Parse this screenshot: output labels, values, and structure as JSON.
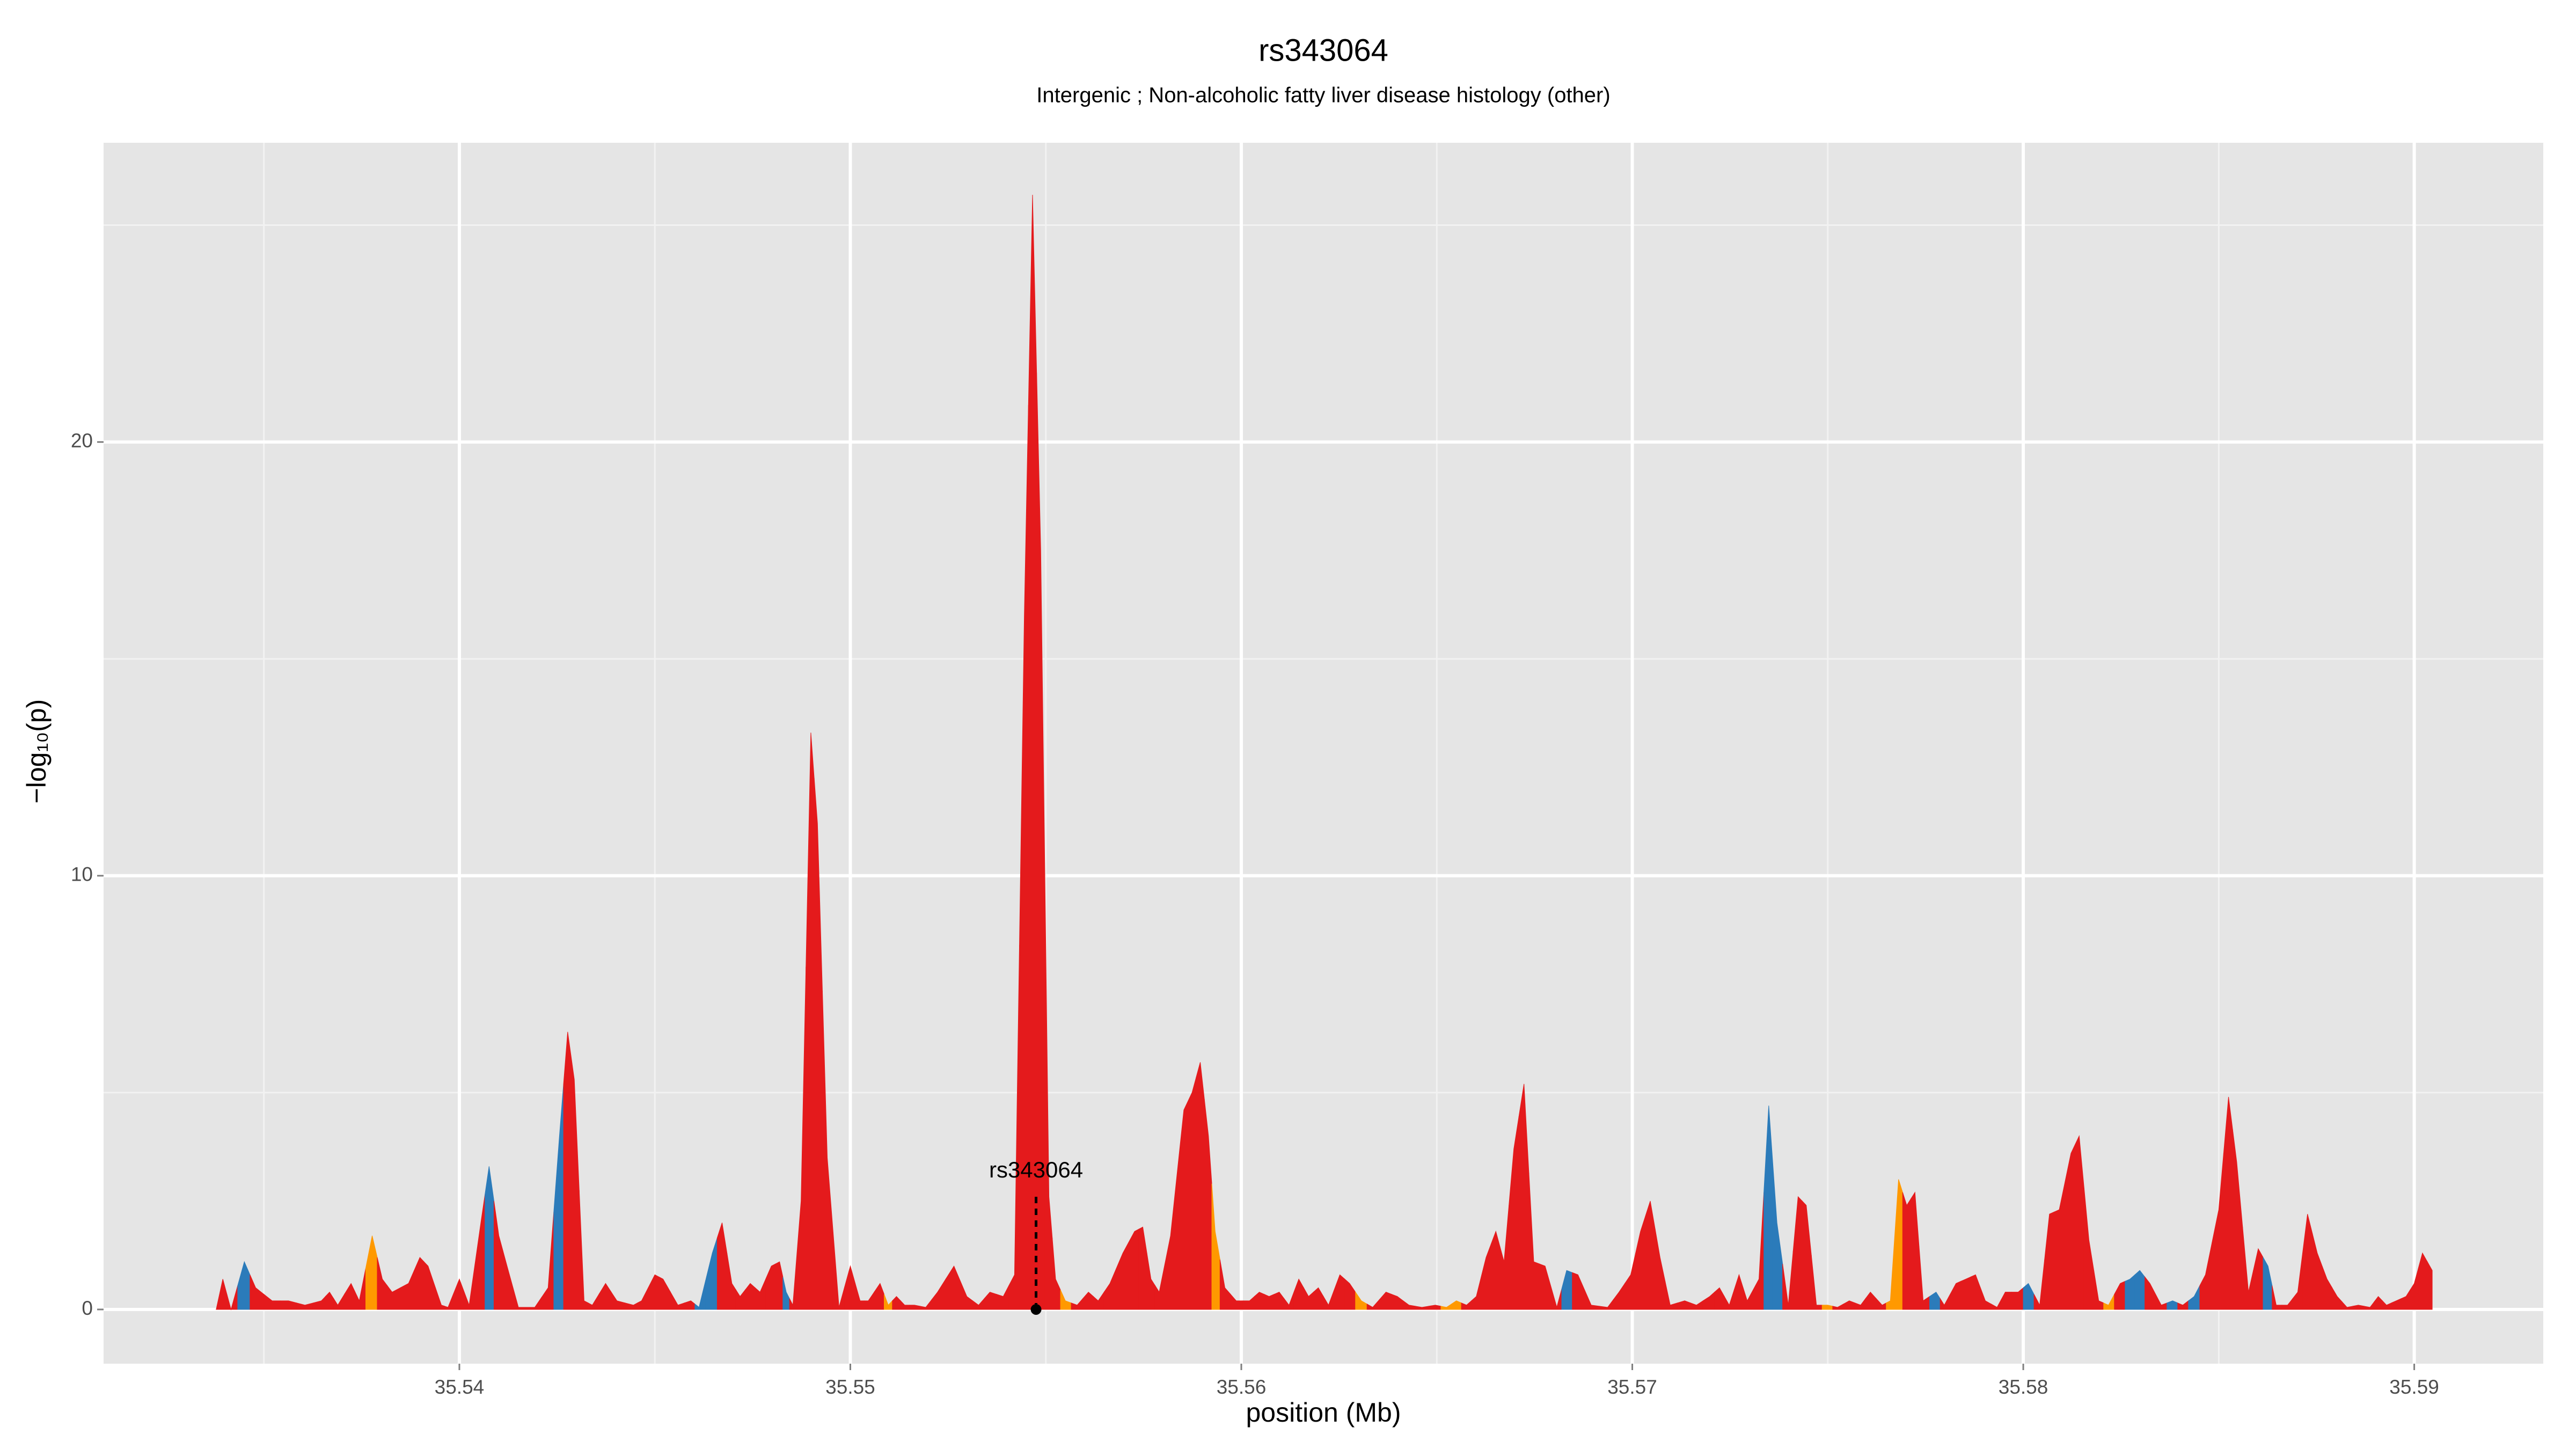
{
  "chart_data": {
    "type": "area",
    "title": "rs343064",
    "subtitle": "Intergenic ; Non-alcoholic fatty liver disease histology (other)",
    "x_label": "position (Mb)",
    "y_label": "−log₁₀(p)",
    "xlim": [
      35.5309,
      35.5933
    ],
    "ylim": [
      -1.25,
      26.9
    ],
    "xticks": [
      35.54,
      35.55,
      35.56,
      35.57,
      35.58,
      35.59
    ],
    "yticks": [
      0,
      10,
      20
    ],
    "minor_xticks": [
      35.535,
      35.545,
      35.555,
      35.565,
      35.575,
      35.585
    ],
    "minor_yticks": [
      5,
      15,
      25
    ],
    "grid": true,
    "annotation": {
      "text": "rs343064",
      "x": 35.55475,
      "y": 0
    },
    "x": [
      35.53378,
      35.53395,
      35.53416,
      35.5345,
      35.53479,
      35.53521,
      35.53563,
      35.53605,
      35.53647,
      35.53668,
      35.53689,
      35.53723,
      35.53744,
      35.53777,
      35.53803,
      35.53828,
      35.5387,
      35.53899,
      35.5392,
      35.53954,
      35.53971,
      35.54,
      35.54025,
      35.54055,
      35.54076,
      35.54101,
      35.54122,
      35.54151,
      35.54193,
      35.54227,
      35.54256,
      35.54277,
      35.54294,
      35.54319,
      35.5434,
      35.54374,
      35.54403,
      35.54445,
      35.54466,
      35.545,
      35.54521,
      35.54559,
      35.54592,
      35.54613,
      35.54647,
      35.54672,
      35.54697,
      35.54718,
      35.54744,
      35.54769,
      35.54798,
      35.54819,
      35.54836,
      35.54853,
      35.54874,
      35.54899,
      35.54916,
      35.54941,
      35.54971,
      35.55,
      35.55025,
      35.55046,
      35.55076,
      35.55097,
      35.55118,
      35.55139,
      35.55164,
      35.55193,
      35.55223,
      35.55265,
      35.55298,
      35.55328,
      35.55357,
      35.55391,
      35.5542,
      35.55445,
      35.55466,
      35.55487,
      35.55508,
      35.55525,
      35.5555,
      35.5558,
      35.55609,
      35.55634,
      35.55664,
      35.55697,
      35.55727,
      35.55748,
      35.55769,
      35.5579,
      35.55819,
      35.55853,
      35.55874,
      35.55895,
      35.55916,
      35.55933,
      35.55958,
      35.55987,
      35.56021,
      35.56046,
      35.56071,
      35.56097,
      35.56122,
      35.56147,
      35.56172,
      35.56197,
      35.56223,
      35.56252,
      35.56277,
      35.56307,
      35.56336,
      35.5637,
      35.56399,
      35.56429,
      35.56462,
      35.56496,
      35.56525,
      35.5655,
      35.56576,
      35.56601,
      35.56626,
      35.56651,
      35.56672,
      35.56697,
      35.56723,
      35.56748,
      35.56777,
      35.56807,
      35.56832,
      35.56861,
      35.56895,
      35.56937,
      35.56966,
      35.56996,
      35.57021,
      35.57046,
      35.57071,
      35.57097,
      35.57134,
      35.57164,
      35.57198,
      35.57223,
      35.57248,
      35.57273,
      35.57294,
      35.57324,
      35.57349,
      35.5737,
      35.57399,
      35.57424,
      35.57445,
      35.57471,
      35.575,
      35.57525,
      35.57555,
      35.57584,
      35.57609,
      35.57639,
      35.5766,
      35.57681,
      35.57702,
      35.57723,
      35.57744,
      35.57777,
      35.57798,
      35.57828,
      35.57853,
      35.57878,
      35.57903,
      35.57933,
      35.57954,
      35.57987,
      35.58013,
      35.58042,
      35.58067,
      35.58092,
      35.58122,
      35.58143,
      35.58168,
      35.58193,
      35.58218,
      35.58248,
      35.58273,
      35.58298,
      35.58324,
      35.58353,
      35.58382,
      35.58408,
      35.58437,
      35.58466,
      35.585,
      35.58525,
      35.58546,
      35.58576,
      35.58601,
      35.58626,
      35.58647,
      35.58676,
      35.58702,
      35.58727,
      35.58752,
      35.58777,
      35.58803,
      35.58828,
      35.58857,
      35.58887,
      35.58908,
      35.58929,
      35.58954,
      35.58979,
      35.59,
      35.59021,
      35.59046
    ],
    "values": [
      0,
      0.7,
      0,
      1.1,
      0.5,
      0.2,
      0.2,
      0.1,
      0.2,
      0.4,
      0.1,
      0.6,
      0.2,
      1.7,
      0.7,
      0.4,
      0.6,
      1.2,
      1.0,
      0.1,
      0.05,
      0.7,
      0.1,
      2.0,
      3.3,
      1.7,
      1.0,
      0.05,
      0.05,
      0.5,
      4.0,
      6.4,
      5.3,
      0.2,
      0.1,
      0.6,
      0.2,
      0.1,
      0.2,
      0.8,
      0.7,
      0.1,
      0.2,
      0.05,
      1.3,
      2.0,
      0.6,
      0.3,
      0.6,
      0.4,
      1.0,
      1.1,
      0.4,
      0.1,
      2.5,
      13.3,
      11.2,
      3.5,
      0.05,
      1.0,
      0.2,
      0.2,
      0.6,
      0.1,
      0.3,
      0.1,
      0.1,
      0.05,
      0.4,
      1.0,
      0.3,
      0.1,
      0.4,
      0.3,
      0.8,
      16.0,
      25.7,
      17.5,
      2.6,
      0.7,
      0.2,
      0.1,
      0.4,
      0.2,
      0.6,
      1.3,
      1.8,
      1.9,
      0.7,
      0.4,
      1.7,
      4.6,
      5.0,
      5.7,
      4.0,
      1.8,
      0.5,
      0.2,
      0.2,
      0.4,
      0.3,
      0.4,
      0.1,
      0.7,
      0.3,
      0.5,
      0.1,
      0.8,
      0.6,
      0.2,
      0.05,
      0.4,
      0.3,
      0.1,
      0.05,
      0.1,
      0.05,
      0.2,
      0.1,
      0.3,
      1.2,
      1.8,
      1.1,
      3.7,
      5.2,
      1.1,
      1.0,
      0.05,
      0.9,
      0.8,
      0.1,
      0.05,
      0.4,
      0.8,
      1.8,
      2.5,
      1.2,
      0.1,
      0.2,
      0.1,
      0.3,
      0.5,
      0.1,
      0.8,
      0.2,
      0.7,
      4.7,
      2.0,
      0.1,
      2.6,
      2.4,
      0.1,
      0.1,
      0.05,
      0.2,
      0.1,
      0.4,
      0.1,
      0.2,
      3.0,
      2.4,
      2.7,
      0.2,
      0.4,
      0.1,
      0.6,
      0.7,
      0.8,
      0.2,
      0.05,
      0.4,
      0.4,
      0.6,
      0.1,
      2.2,
      2.3,
      3.6,
      4.0,
      1.6,
      0.2,
      0.1,
      0.6,
      0.7,
      0.9,
      0.6,
      0.1,
      0.2,
      0.1,
      0.3,
      0.8,
      2.3,
      4.9,
      3.4,
      0.4,
      1.4,
      1.0,
      0.1,
      0.1,
      0.4,
      2.2,
      1.3,
      0.7,
      0.3,
      0.05,
      0.1,
      0.05,
      0.3,
      0.1,
      0.2,
      0.3,
      0.6,
      1.3,
      0.9
    ],
    "colors": [
      "#e41a1c",
      "#e41a1c",
      "#e41a1c",
      "#2b7bba",
      "#e41a1c",
      "#e41a1c",
      "#e41a1c",
      "#e41a1c",
      "#e41a1c",
      "#e41a1c",
      "#e41a1c",
      "#e41a1c",
      "#e41a1c",
      "#ff9900",
      "#e41a1c",
      "#e41a1c",
      "#e41a1c",
      "#e41a1c",
      "#e41a1c",
      "#e41a1c",
      "#e41a1c",
      "#e41a1c",
      "#e41a1c",
      "#e41a1c",
      "#2b7bba",
      "#e41a1c",
      "#e41a1c",
      "#e41a1c",
      "#e41a1c",
      "#e41a1c",
      "#2b7bba",
      "#e41a1c",
      "#e41a1c",
      "#e41a1c",
      "#e41a1c",
      "#e41a1c",
      "#e41a1c",
      "#e41a1c",
      "#e41a1c",
      "#e41a1c",
      "#e41a1c",
      "#e41a1c",
      "#e41a1c",
      "#2b7bba",
      "#2b7bba",
      "#e41a1c",
      "#e41a1c",
      "#e41a1c",
      "#e41a1c",
      "#e41a1c",
      "#e41a1c",
      "#e41a1c",
      "#2b7bba",
      "#e41a1c",
      "#e41a1c",
      "#e41a1c",
      "#e41a1c",
      "#e41a1c",
      "#e41a1c",
      "#e41a1c",
      "#e41a1c",
      "#e41a1c",
      "#e41a1c",
      "#ff9900",
      "#e41a1c",
      "#e41a1c",
      "#e41a1c",
      "#e41a1c",
      "#e41a1c",
      "#e41a1c",
      "#e41a1c",
      "#e41a1c",
      "#e41a1c",
      "#e41a1c",
      "#e41a1c",
      "#e41a1c",
      "#e41a1c",
      "#e41a1c",
      "#e41a1c",
      "#e41a1c",
      "#ff9900",
      "#e41a1c",
      "#e41a1c",
      "#e41a1c",
      "#e41a1c",
      "#e41a1c",
      "#e41a1c",
      "#e41a1c",
      "#e41a1c",
      "#e41a1c",
      "#e41a1c",
      "#e41a1c",
      "#e41a1c",
      "#e41a1c",
      "#e41a1c",
      "#ff9900",
      "#e41a1c",
      "#e41a1c",
      "#e41a1c",
      "#e41a1c",
      "#e41a1c",
      "#e41a1c",
      "#e41a1c",
      "#e41a1c",
      "#e41a1c",
      "#e41a1c",
      "#e41a1c",
      "#e41a1c",
      "#e41a1c",
      "#ff9900",
      "#e41a1c",
      "#e41a1c",
      "#e41a1c",
      "#e41a1c",
      "#e41a1c",
      "#e41a1c",
      "#ff9900",
      "#ff9900",
      "#e41a1c",
      "#e41a1c",
      "#e41a1c",
      "#e41a1c",
      "#e41a1c",
      "#e41a1c",
      "#e41a1c",
      "#e41a1c",
      "#e41a1c",
      "#e41a1c",
      "#2b7bba",
      "#e41a1c",
      "#e41a1c",
      "#e41a1c",
      "#e41a1c",
      "#e41a1c",
      "#e41a1c",
      "#e41a1c",
      "#e41a1c",
      "#e41a1c",
      "#e41a1c",
      "#e41a1c",
      "#e41a1c",
      "#e41a1c",
      "#e41a1c",
      "#e41a1c",
      "#e41a1c",
      "#e41a1c",
      "#2b7bba",
      "#2b7bba",
      "#e41a1c",
      "#e41a1c",
      "#e41a1c",
      "#e41a1c",
      "#ff9900",
      "#e41a1c",
      "#e41a1c",
      "#e41a1c",
      "#e41a1c",
      "#e41a1c",
      "#ff9900",
      "#ff9900",
      "#e41a1c",
      "#e41a1c",
      "#e41a1c",
      "#2b7bba",
      "#e41a1c",
      "#e41a1c",
      "#e41a1c",
      "#e41a1c",
      "#e41a1c",
      "#e41a1c",
      "#e41a1c",
      "#e41a1c",
      "#2b7bba",
      "#e41a1c",
      "#e41a1c",
      "#e41a1c",
      "#e41a1c",
      "#e41a1c",
      "#e41a1c",
      "#e41a1c",
      "#ff9900",
      "#e41a1c",
      "#2b7bba",
      "#2b7bba",
      "#e41a1c",
      "#e41a1c",
      "#2b7bba",
      "#e41a1c",
      "#2b7bba",
      "#e41a1c",
      "#e41a1c",
      "#e41a1c",
      "#e41a1c",
      "#e41a1c",
      "#e41a1c",
      "#2b7bba",
      "#e41a1c",
      "#e41a1c",
      "#e41a1c",
      "#e41a1c",
      "#e41a1c",
      "#e41a1c",
      "#e41a1c",
      "#e41a1c",
      "#e41a1c",
      "#e41a1c",
      "#e41a1c",
      "#e41a1c",
      "#e41a1c",
      "#e41a1c",
      "#e41a1c",
      "#e41a1c",
      "#e41a1c"
    ]
  }
}
